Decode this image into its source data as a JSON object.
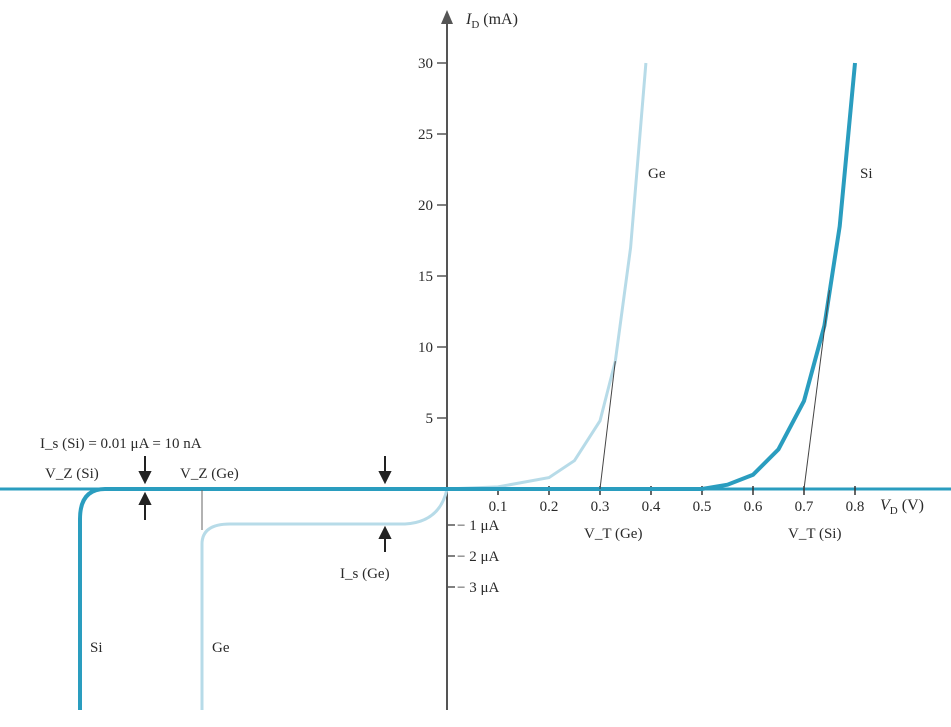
{
  "chart_data": {
    "type": "line",
    "title": "",
    "y_axis": {
      "label": "I_D (mA)",
      "label_main": "I",
      "label_sub": "D",
      "label_unit": " (mA)",
      "ticks": [
        5,
        10,
        15,
        20,
        25,
        30
      ],
      "neg_ticks_uA": [
        1,
        2,
        3
      ],
      "neg_tick_labels": [
        "− 1 μA",
        "− 2 μA",
        "− 3 μA"
      ]
    },
    "x_axis": {
      "label": "V_D (V)",
      "label_main": "V",
      "label_sub": "D",
      "label_unit": " (V)",
      "ticks": [
        0.1,
        0.2,
        0.3,
        0.4,
        0.5,
        0.6,
        0.7,
        0.8
      ],
      "tick_labels": [
        "0.1",
        "0.2",
        "0.3",
        "0.4",
        "0.5",
        "0.6",
        "0.7",
        "0.8"
      ]
    },
    "series": [
      {
        "name": "Si",
        "color": "#2a9dbf",
        "forward": {
          "x": [
            0.0,
            0.5,
            0.55,
            0.6,
            0.65,
            0.7,
            0.74,
            0.77,
            0.8
          ],
          "y": [
            0,
            0,
            0.3,
            1.0,
            2.8,
            6.2,
            11.5,
            18.5,
            30
          ]
        },
        "reverse_saturation_uA": 0.01,
        "breakdown_label": "V_Z (Si)"
      },
      {
        "name": "Ge",
        "color": "#b7dbe8",
        "forward": {
          "x": [
            0.0,
            0.1,
            0.2,
            0.25,
            0.3,
            0.33,
            0.36,
            0.39
          ],
          "y": [
            0,
            0.15,
            0.8,
            2.0,
            4.8,
            9.0,
            17.0,
            30
          ]
        },
        "reverse_saturation_uA": 1.0,
        "breakdown_label": "V_Z (Ge)"
      }
    ],
    "annotations": {
      "si_is_label": "I_s (Si) = 0.01 μA = 10 nA",
      "ge_is_label": "I_s (Ge)",
      "vt_ge_label": "V_T (Ge)",
      "vt_si_label": "V_T (Si)",
      "vz_si_label": "V_Z (Si)",
      "vz_ge_label": "V_Z (Ge)",
      "curve_label_ge": "Ge",
      "curve_label_si": "Si",
      "vt_ge_value": 0.3,
      "vt_si_value": 0.7
    }
  }
}
